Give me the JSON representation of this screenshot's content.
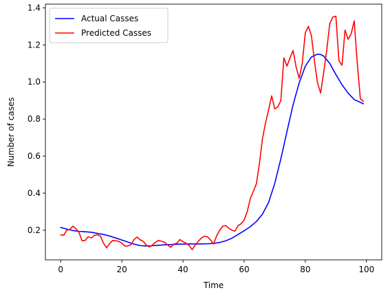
{
  "chart_data": {
    "type": "line",
    "title": "",
    "xlabel": "Time",
    "ylabel": "Number of cases",
    "xlim": [
      -5,
      105
    ],
    "ylim": [
      0.04,
      1.42
    ],
    "xticks": [
      0,
      20,
      40,
      60,
      80,
      100
    ],
    "yticks": [
      0.2,
      0.4,
      0.6,
      0.8,
      1.0,
      1.2,
      1.4
    ],
    "ytick_labels": [
      "0.2",
      "0.4",
      "0.6",
      "0.8",
      "1.0",
      "1.2",
      "1.4"
    ],
    "grid": false,
    "legend": "top-left",
    "series": [
      {
        "name": "Actual Casses",
        "color": "#0000ff",
        "x": [
          0,
          2,
          4,
          6,
          8,
          10,
          12,
          14,
          16,
          18,
          20,
          22,
          24,
          26,
          28,
          30,
          32,
          34,
          36,
          38,
          40,
          42,
          44,
          46,
          48,
          50,
          52,
          54,
          56,
          58,
          60,
          62,
          64,
          66,
          68,
          70,
          72,
          74,
          76,
          78,
          80,
          82,
          84,
          85,
          86,
          88,
          90,
          92,
          94,
          96,
          98,
          99
        ],
        "y": [
          0.215,
          0.206,
          0.198,
          0.194,
          0.192,
          0.189,
          0.183,
          0.177,
          0.169,
          0.158,
          0.147,
          0.136,
          0.125,
          0.117,
          0.115,
          0.116,
          0.119,
          0.121,
          0.123,
          0.124,
          0.125,
          0.126,
          0.126,
          0.126,
          0.127,
          0.129,
          0.134,
          0.143,
          0.157,
          0.177,
          0.197,
          0.219,
          0.247,
          0.287,
          0.35,
          0.452,
          0.585,
          0.732,
          0.877,
          0.995,
          1.085,
          1.135,
          1.15,
          1.148,
          1.14,
          1.1,
          1.04,
          0.985,
          0.94,
          0.905,
          0.89,
          0.882
        ]
      },
      {
        "name": "Predicted Casses",
        "color": "#ff0000",
        "x": [
          0,
          1,
          2,
          3,
          4,
          5,
          6,
          7,
          8,
          9,
          10,
          11,
          12,
          13,
          14,
          15,
          16,
          17,
          18,
          19,
          20,
          21,
          22,
          23,
          24,
          25,
          26,
          27,
          28,
          29,
          30,
          31,
          32,
          33,
          34,
          35,
          36,
          37,
          38,
          39,
          40,
          41,
          42,
          43,
          44,
          45,
          46,
          47,
          48,
          49,
          50,
          51,
          52,
          53,
          54,
          55,
          56,
          57,
          58,
          59,
          60,
          61,
          62,
          63,
          64,
          65,
          66,
          67,
          68,
          69,
          70,
          71,
          72,
          73,
          74,
          75,
          76,
          77,
          78,
          79,
          80,
          81,
          82,
          83,
          84,
          85,
          86,
          87,
          88,
          89,
          90,
          91,
          92,
          93,
          94,
          95,
          96,
          97,
          98,
          99
        ],
        "y": [
          0.175,
          0.173,
          0.2,
          0.205,
          0.222,
          0.208,
          0.188,
          0.143,
          0.145,
          0.165,
          0.158,
          0.172,
          0.176,
          0.168,
          0.13,
          0.105,
          0.128,
          0.145,
          0.143,
          0.14,
          0.13,
          0.115,
          0.115,
          0.122,
          0.15,
          0.163,
          0.148,
          0.14,
          0.12,
          0.11,
          0.12,
          0.135,
          0.145,
          0.14,
          0.135,
          0.12,
          0.108,
          0.125,
          0.13,
          0.15,
          0.138,
          0.13,
          0.118,
          0.095,
          0.12,
          0.14,
          0.158,
          0.168,
          0.165,
          0.148,
          0.125,
          0.17,
          0.2,
          0.222,
          0.225,
          0.21,
          0.2,
          0.195,
          0.225,
          0.235,
          0.255,
          0.3,
          0.37,
          0.41,
          0.45,
          0.56,
          0.695,
          0.78,
          0.85,
          0.925,
          0.855,
          0.865,
          0.9,
          1.13,
          1.085,
          1.13,
          1.17,
          1.08,
          1.02,
          1.1,
          1.265,
          1.3,
          1.25,
          1.11,
          0.995,
          0.94,
          1.05,
          1.17,
          1.315,
          1.35,
          1.355,
          1.115,
          1.09,
          1.28,
          1.23,
          1.26,
          1.33,
          1.1,
          0.91,
          0.895
        ]
      }
    ]
  }
}
